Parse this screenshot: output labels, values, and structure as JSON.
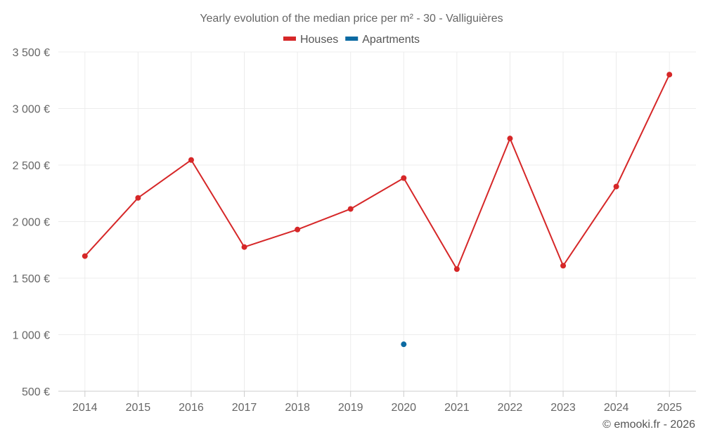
{
  "chart_data": {
    "type": "line",
    "title": "Yearly evolution of the median price per m² - 30 - Valliguières",
    "categories": [
      "2014",
      "2015",
      "2016",
      "2017",
      "2018",
      "2019",
      "2020",
      "2021",
      "2022",
      "2023",
      "2024",
      "2025"
    ],
    "series": [
      {
        "name": "Houses",
        "color": "#d62728",
        "values": [
          1695,
          2210,
          2545,
          1775,
          1930,
          2112,
          2385,
          1580,
          2735,
          1610,
          2310,
          3300
        ]
      },
      {
        "name": "Apartments",
        "color": "#0b6aa2",
        "values": [
          null,
          null,
          null,
          null,
          null,
          null,
          915,
          null,
          null,
          null,
          null,
          null
        ]
      }
    ],
    "yticks": [
      "3 500 €",
      "3 000 €",
      "2 500 €",
      "2 000 €",
      "1 500 €",
      "1 000 €",
      "500 €"
    ],
    "ytick_values": [
      3500,
      3000,
      2500,
      2000,
      1500,
      1000,
      500
    ],
    "ylim": [
      500,
      3500
    ],
    "xlabel": "",
    "ylabel": "",
    "legend_position": "top-center",
    "grid": true
  },
  "credit": "© emooki.fr - 2026"
}
